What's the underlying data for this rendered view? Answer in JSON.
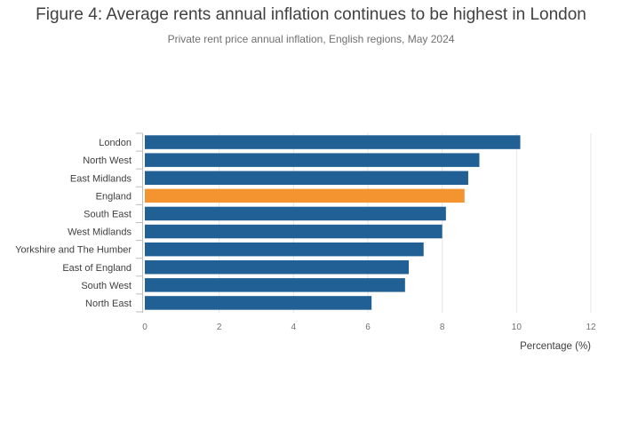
{
  "header": {
    "title": "Figure 4: Average rents annual inflation continues to be highest in London",
    "subtitle": "Private rent price annual inflation, English regions, May 2024"
  },
  "colors": {
    "bar": "#206095",
    "highlight": "#f39431",
    "grid": "#e6e6e6",
    "axis_line": "#bebebe"
  },
  "chart_data": {
    "type": "bar",
    "orientation": "horizontal",
    "title": "Figure 4: Average rents annual inflation continues to be highest in London",
    "subtitle": "Private rent price annual inflation, English regions, May 2024",
    "xlabel": "Percentage (%)",
    "ylabel": "",
    "xlim": [
      0,
      12
    ],
    "xticks": [
      0,
      2,
      4,
      6,
      8,
      10,
      12
    ],
    "grid": true,
    "highlight_category": "England",
    "categories": [
      "London",
      "North West",
      "East Midlands",
      "England",
      "South East",
      "West Midlands",
      "Yorkshire and The Humber",
      "East of England",
      "South West",
      "North East"
    ],
    "values": [
      10.1,
      9.0,
      8.7,
      8.6,
      8.1,
      8.0,
      7.5,
      7.1,
      7.0,
      6.1
    ]
  }
}
